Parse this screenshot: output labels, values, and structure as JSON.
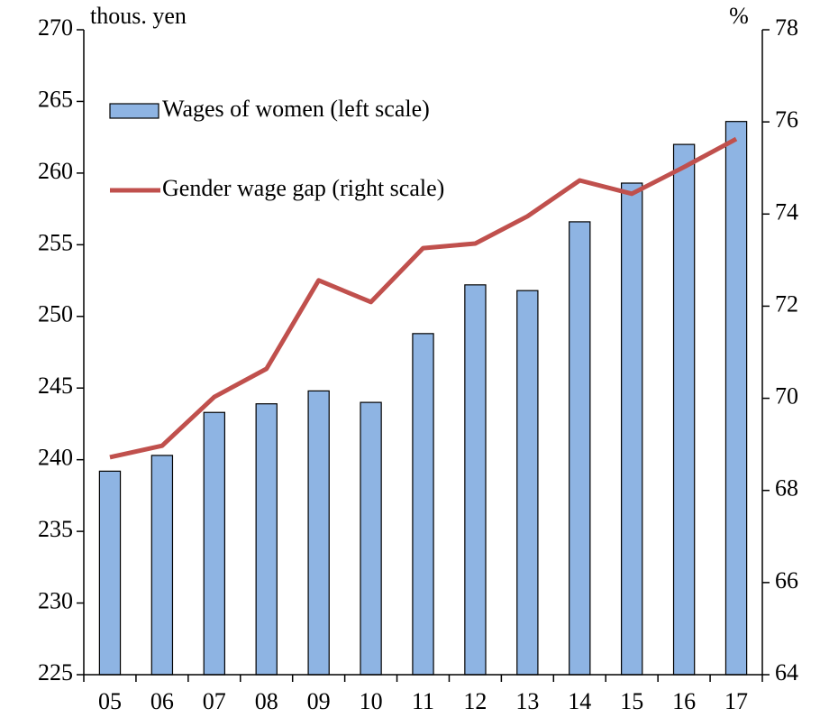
{
  "chart_data": {
    "type": "bar_line",
    "y_label": "thous. yen",
    "y2_label": "%",
    "categories": [
      "05",
      "06",
      "07",
      "08",
      "09",
      "10",
      "11",
      "12",
      "13",
      "14",
      "15",
      "16",
      "17"
    ],
    "series": [
      {
        "name": "Wages of women (left scale)",
        "type": "bar",
        "color": "#8eb4e3",
        "values": [
          239.2,
          240.3,
          243.3,
          243.9,
          244.8,
          244.0,
          248.8,
          252.2,
          251.8,
          256.6,
          259.3,
          262.0,
          263.6
        ]
      },
      {
        "name": "Gender wage gap (right scale)",
        "type": "line",
        "axis": "y2",
        "color": "#c0504d",
        "values": [
          68.72,
          68.97,
          70.03,
          70.64,
          72.56,
          72.09,
          73.26,
          73.36,
          73.95,
          74.73,
          74.44,
          75.02,
          75.63
        ]
      }
    ],
    "ylim": [
      225,
      270
    ],
    "yticks": [
      225,
      230,
      235,
      240,
      245,
      250,
      255,
      260,
      265,
      270
    ],
    "y2lim": [
      64,
      78
    ],
    "y2ticks": [
      64,
      66,
      68,
      70,
      72,
      74,
      76,
      78
    ]
  }
}
